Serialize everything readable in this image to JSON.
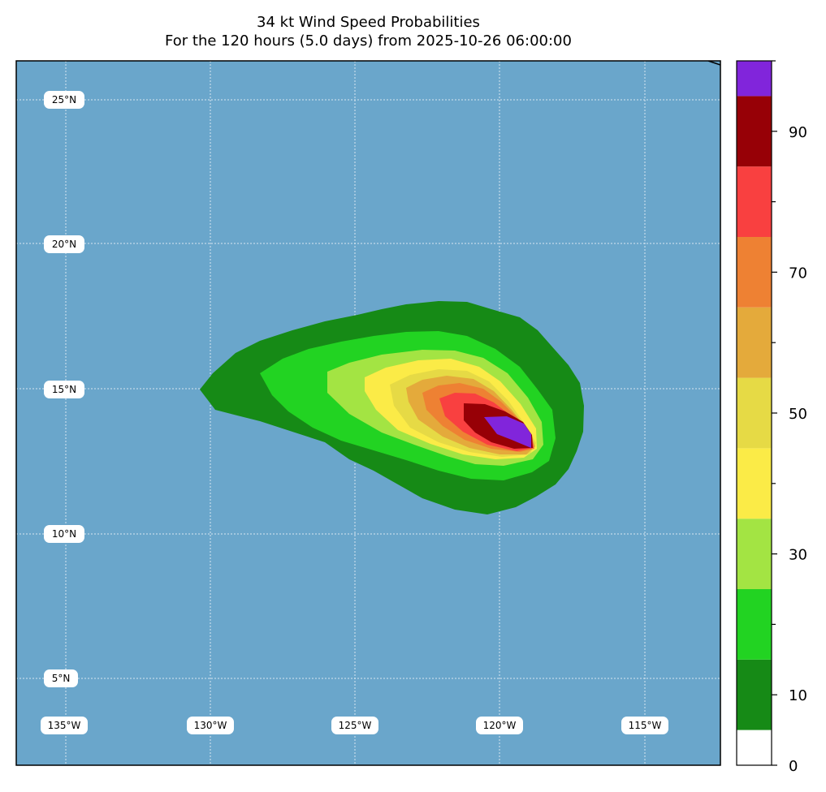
{
  "title": {
    "line1": "34 kt Wind Speed Probabilities",
    "line2": "For the 120 hours (5.0 days) from 2025-10-26 06:00:00"
  },
  "map": {
    "ocean_color": "#6aa6cb",
    "lat_labels": [
      {
        "value": 25,
        "text": "25°N"
      },
      {
        "value": 20,
        "text": "20°N"
      },
      {
        "value": 15,
        "text": "15°N"
      },
      {
        "value": 10,
        "text": "10°N"
      },
      {
        "value": 5,
        "text": "5°N"
      }
    ],
    "lon_labels": [
      {
        "value": -135,
        "text": "135°W"
      },
      {
        "value": -130,
        "text": "130°W"
      },
      {
        "value": -125,
        "text": "125°W"
      },
      {
        "value": -120,
        "text": "120°W"
      },
      {
        "value": -115,
        "text": "115°W"
      }
    ]
  },
  "probability_levels": [
    {
      "min": 0,
      "max": 10,
      "color": "#168a16"
    },
    {
      "min": 10,
      "max": 20,
      "color": "#22d322"
    },
    {
      "min": 20,
      "max": 30,
      "color": "#a3e443"
    },
    {
      "min": 30,
      "max": 40,
      "color": "#fbeb47"
    },
    {
      "min": 40,
      "max": 50,
      "color": "#e6da45"
    },
    {
      "min": 50,
      "max": 60,
      "color": "#e4aa3b"
    },
    {
      "min": 60,
      "max": 70,
      "color": "#ee8133"
    },
    {
      "min": 70,
      "max": 80,
      "color": "#f94040"
    },
    {
      "min": 80,
      "max": 90,
      "color": "#970006"
    },
    {
      "min": 90,
      "max": 100,
      "color": "#8125db"
    }
  ],
  "colorbar": {
    "bins": [
      {
        "min": 0,
        "max": 5,
        "color": "#ffffff"
      },
      {
        "min": 5,
        "max": 15,
        "color": "#168a16"
      },
      {
        "min": 15,
        "max": 25,
        "color": "#22d322"
      },
      {
        "min": 25,
        "max": 35,
        "color": "#a3e443"
      },
      {
        "min": 35,
        "max": 45,
        "color": "#fbeb47"
      },
      {
        "min": 45,
        "max": 55,
        "color": "#e6da45"
      },
      {
        "min": 55,
        "max": 65,
        "color": "#e4aa3b"
      },
      {
        "min": 65,
        "max": 75,
        "color": "#ee8133"
      },
      {
        "min": 75,
        "max": 85,
        "color": "#f94040"
      },
      {
        "min": 85,
        "max": 95,
        "color": "#970006"
      },
      {
        "min": 95,
        "max": 100,
        "color": "#8125db"
      }
    ],
    "labels": [
      "0",
      "10",
      "30",
      "50",
      "70",
      "90"
    ]
  }
}
